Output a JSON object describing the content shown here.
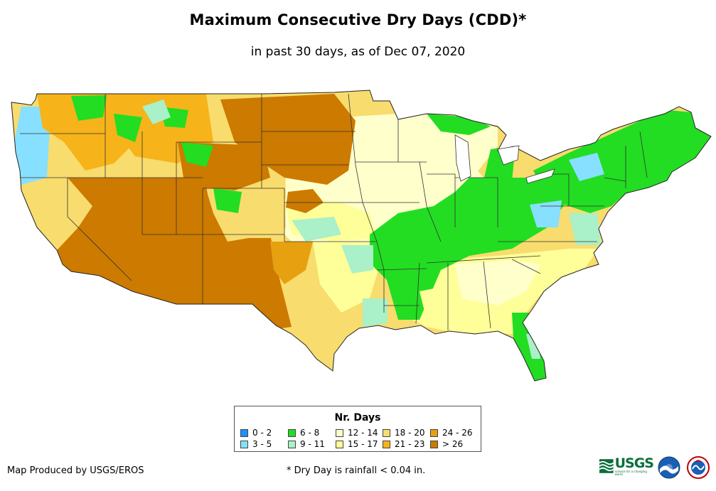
{
  "title": "Maximum Consecutive Dry Days (CDD)*",
  "subtitle": "in past 30 days, as of Dec 07, 2020",
  "legend": {
    "title": "Nr. Days",
    "items": [
      {
        "label": "0 - 2",
        "color": "#1e90ff"
      },
      {
        "label": "3 - 5",
        "color": "#87e0ff"
      },
      {
        "label": "6 - 8",
        "color": "#22dd22"
      },
      {
        "label": "9 - 11",
        "color": "#aaf0c8"
      },
      {
        "label": "12 - 14",
        "color": "#ffffcc"
      },
      {
        "label": "15 - 17",
        "color": "#ffff99"
      },
      {
        "label": "18 - 20",
        "color": "#f8dc6e"
      },
      {
        "label": "21 - 23",
        "color": "#f6b31a"
      },
      {
        "label": "24 - 26",
        "color": "#e6a010"
      },
      {
        "label": "> 26",
        "color": "#cc7a00"
      }
    ]
  },
  "footer": {
    "producer": "Map Produced by USGS/EROS",
    "footnote": "* Dry Day is rainfall < 0.04 in.",
    "usgs_text": "USGS",
    "usgs_tagline": "science for a changing world"
  },
  "logos": [
    "usgs-logo",
    "noaa-logo",
    "nws-logo"
  ]
}
